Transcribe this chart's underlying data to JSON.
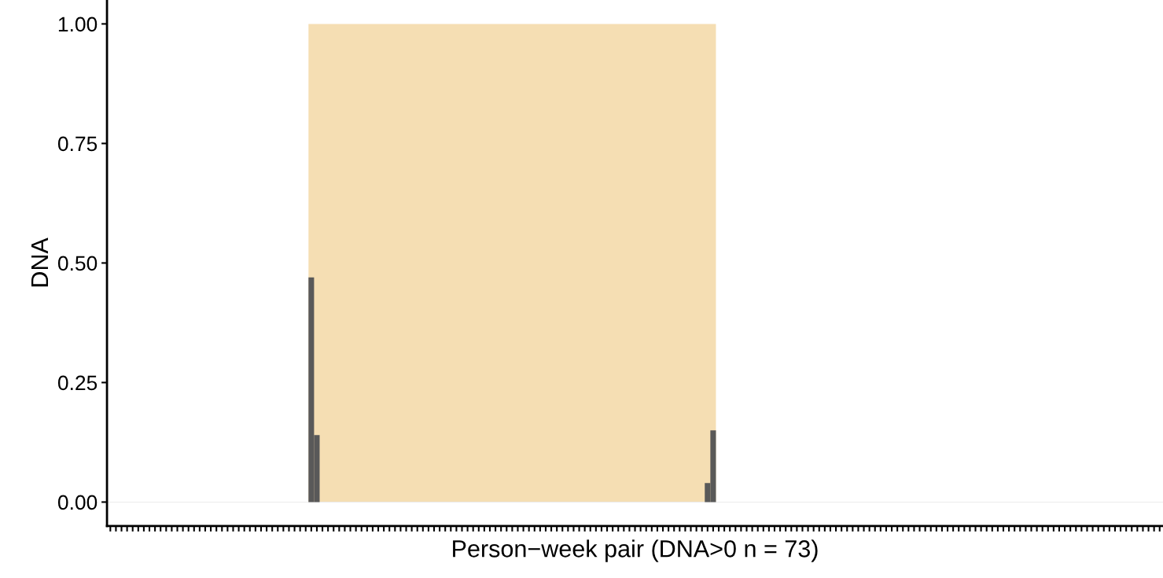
{
  "chart_data": {
    "type": "bar",
    "xlabel": "Person−week pair (DNA>0 n = 73)",
    "ylabel": "DNA",
    "categories": [
      null,
      null,
      null,
      null,
      null,
      null,
      null,
      null,
      null,
      null,
      null,
      null,
      null,
      null,
      null,
      null,
      null,
      null,
      null,
      null,
      null,
      null,
      null,
      null,
      null,
      null,
      null,
      null,
      null,
      null,
      null,
      null,
      null,
      null,
      null,
      null,
      null,
      null,
      null,
      null,
      null,
      null,
      null,
      null,
      null,
      null,
      null,
      null,
      null,
      null,
      null,
      null,
      null,
      null,
      null,
      null,
      null,
      null,
      null,
      null,
      null,
      null,
      null,
      null,
      null,
      null,
      null,
      null,
      null,
      null,
      null,
      null,
      null,
      null,
      null,
      null,
      null,
      null,
      null,
      null,
      null,
      null,
      null,
      null,
      null,
      null,
      null,
      null,
      null,
      null,
      null,
      null,
      null,
      null,
      null,
      null,
      null,
      null,
      null,
      null,
      null,
      null,
      null,
      null,
      null,
      null,
      null,
      null,
      null,
      null,
      null,
      null,
      null,
      null,
      null,
      null,
      null,
      null,
      null,
      null,
      null,
      null,
      null,
      null,
      null,
      null,
      null,
      null,
      null,
      null,
      null,
      null,
      null,
      null,
      null,
      null,
      null,
      null,
      null,
      null,
      null,
      null,
      null,
      null,
      null,
      null,
      null,
      null,
      null,
      null,
      null,
      null,
      null,
      null,
      null,
      null,
      null,
      null,
      null,
      null,
      null,
      null,
      null,
      null,
      null,
      null,
      null,
      null,
      null,
      null,
      null,
      null,
      null,
      null,
      null,
      null,
      null,
      null,
      null,
      null,
      null,
      null,
      null,
      null,
      null,
      null,
      null,
      null,
      null
    ],
    "series": [
      {
        "color": "#595959",
        "values": [
          0,
          0,
          0,
          0,
          0,
          0,
          0,
          0,
          0,
          0,
          0,
          0,
          0,
          0,
          0,
          0,
          0,
          0,
          0,
          0,
          0,
          0,
          0,
          0,
          0,
          0,
          0,
          0,
          0,
          0,
          0,
          0,
          0,
          0,
          0,
          0,
          0.47,
          0.14,
          0,
          0,
          0,
          0,
          0,
          0,
          0,
          0,
          0,
          0,
          0,
          0,
          0,
          0,
          0,
          0,
          0,
          0,
          0,
          0,
          0,
          0,
          0,
          0,
          0,
          0,
          0,
          0,
          0,
          0,
          0,
          0,
          0,
          0,
          0,
          0,
          0,
          0,
          0,
          0,
          0,
          0,
          0,
          0,
          0,
          0,
          0,
          0,
          0,
          0,
          0,
          0,
          0,
          0,
          0,
          0,
          0,
          0,
          0,
          0,
          0,
          0,
          0,
          0,
          0,
          0,
          0,
          0,
          0,
          0.04,
          0.15,
          0,
          0,
          0,
          0,
          0,
          0,
          0,
          0,
          0,
          0,
          0,
          0,
          0,
          0,
          0,
          0,
          0,
          0,
          0,
          0,
          0,
          0,
          0,
          0,
          0,
          0,
          0,
          0,
          0,
          0,
          0,
          0,
          0,
          0,
          0,
          0,
          0,
          0,
          0,
          0,
          0,
          0,
          0,
          0,
          0,
          0,
          0,
          0,
          0,
          0,
          0,
          0,
          0,
          0,
          0,
          0,
          0,
          0,
          0,
          0,
          0,
          0,
          0,
          0,
          0,
          0,
          0,
          0,
          0,
          0,
          0,
          0,
          0,
          0,
          0,
          0,
          0,
          0,
          0,
          0
        ]
      }
    ],
    "ref_lines": [
      {
        "axis": "y",
        "value": 0,
        "color": "#ebebeb"
      }
    ],
    "ylim": [
      -0.05,
      1.05
    ],
    "yticks": [
      {
        "value": 0,
        "label": "0.00"
      },
      {
        "value": 0.25,
        "label": "0.25"
      },
      {
        "value": 0.5,
        "label": "0.50"
      },
      {
        "value": 0.75,
        "label": "0.75"
      },
      {
        "value": 1,
        "label": "1.00"
      }
    ],
    "tick_labels": "y",
    "grid": false
  }
}
